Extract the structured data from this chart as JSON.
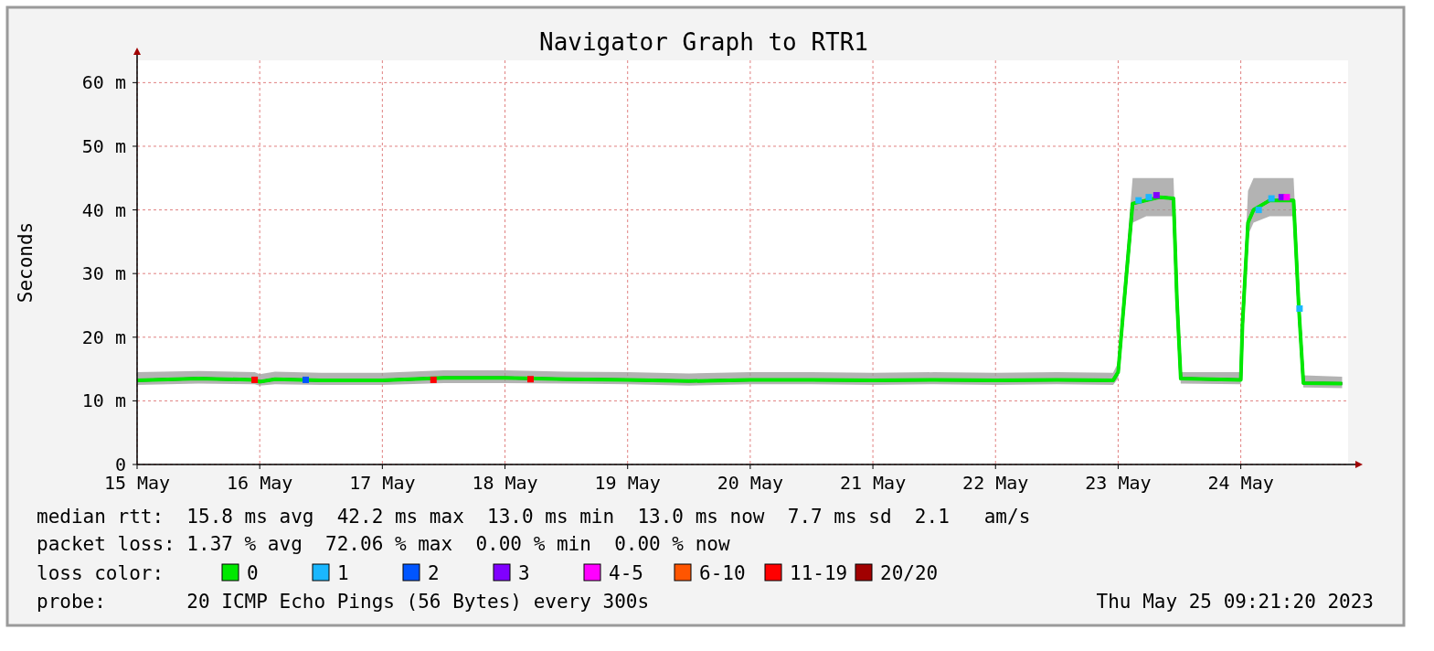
{
  "chart_data": {
    "type": "line",
    "title": "Navigator Graph to RTR1",
    "ylabel": "Seconds",
    "legend_title": "loss color:",
    "legend": "bottom",
    "grid": true,
    "marker": "square",
    "xlim": [
      "2023-05-15T00:00",
      "2023-05-24T21:00"
    ],
    "xticks": [
      {
        "value": "2023-05-15T00:00",
        "label": "15 May"
      },
      {
        "value": "2023-05-16T00:00",
        "label": "16 May"
      },
      {
        "value": "2023-05-17T00:00",
        "label": "17 May"
      },
      {
        "value": "2023-05-18T00:00",
        "label": "18 May"
      },
      {
        "value": "2023-05-19T00:00",
        "label": "19 May"
      },
      {
        "value": "2023-05-20T00:00",
        "label": "20 May"
      },
      {
        "value": "2023-05-21T00:00",
        "label": "21 May"
      },
      {
        "value": "2023-05-22T00:00",
        "label": "22 May"
      },
      {
        "value": "2023-05-23T00:00",
        "label": "23 May"
      },
      {
        "value": "2023-05-24T00:00",
        "label": "24 May"
      }
    ],
    "ylim": [
      0,
      63.5
    ],
    "yticks": [
      {
        "value": 0,
        "label": "0"
      },
      {
        "value": 10,
        "label": "10 m"
      },
      {
        "value": 20,
        "label": "20 m"
      },
      {
        "value": 30,
        "label": "30 m"
      },
      {
        "value": 40,
        "label": "40 m"
      },
      {
        "value": 50,
        "label": "50 m"
      },
      {
        "value": 60,
        "label": "60 m"
      }
    ],
    "series": [
      {
        "name": "0",
        "color": "#00e800",
        "marker": "none",
        "x": [
          "2023-05-15T00:00",
          "2023-05-15T12:00",
          "2023-05-15T23:00",
          "2023-05-16T00:00",
          "2023-05-16T03:00",
          "2023-05-16T12:00",
          "2023-05-17T00:00",
          "2023-05-17T12:00",
          "2023-05-18T00:00",
          "2023-05-18T12:00",
          "2023-05-19T00:00",
          "2023-05-19T12:00",
          "2023-05-20T00:00",
          "2023-05-20T12:00",
          "2023-05-21T00:00",
          "2023-05-21T12:00",
          "2023-05-22T00:00",
          "2023-05-22T12:00",
          "2023-05-22T23:00",
          "2023-05-23T00:00",
          "2023-05-23T01:00",
          "2023-05-23T02:50",
          "2023-05-23T05:30",
          "2023-05-23T08:10",
          "2023-05-23T10:50",
          "2023-05-23T11:30",
          "2023-05-23T12:15",
          "2023-05-24T00:00",
          "2023-05-24T00:20",
          "2023-05-24T01:25",
          "2023-05-24T02:30",
          "2023-05-24T05:40",
          "2023-05-24T10:20",
          "2023-05-24T11:20",
          "2023-05-24T12:15",
          "2023-05-24T19:50"
        ],
        "values": [
          13.2,
          13.5,
          13.3,
          13.0,
          13.4,
          13.2,
          13.2,
          13.6,
          13.6,
          13.4,
          13.3,
          13.1,
          13.3,
          13.3,
          13.2,
          13.3,
          13.2,
          13.3,
          13.2,
          14.5,
          24,
          41,
          41.5,
          42,
          41.8,
          26,
          13.5,
          13.3,
          22,
          38,
          40,
          41.5,
          41.5,
          25,
          12.8,
          12.7
        ],
        "lower": [
          12.5,
          12.7,
          12.6,
          12.4,
          12.6,
          12.5,
          12.5,
          12.8,
          12.8,
          12.7,
          12.6,
          12.4,
          12.6,
          12.6,
          12.5,
          12.6,
          12.5,
          12.6,
          12.5,
          13.5,
          22,
          38,
          39,
          39,
          39,
          24,
          12.7,
          12.6,
          20,
          36,
          38,
          39,
          39,
          23,
          12.1,
          12
        ],
        "upper": [
          14.5,
          14.7,
          14.5,
          14.2,
          14.6,
          14.4,
          14.4,
          14.8,
          14.8,
          14.6,
          14.5,
          14.3,
          14.5,
          14.5,
          14.4,
          14.5,
          14.4,
          14.5,
          14.4,
          16,
          27,
          45,
          45,
          45,
          45,
          29,
          14.5,
          14.5,
          25,
          43,
          45,
          45,
          45,
          28,
          14,
          13.8
        ]
      },
      {
        "name": "1",
        "type": "scatter",
        "color": "#1ab7ff",
        "x": [
          "2023-05-23T04:00",
          "2023-05-23T06:00",
          "2023-05-24T03:30",
          "2023-05-24T06:00",
          "2023-05-24T11:30"
        ],
        "values": [
          41.5,
          42,
          40,
          41.8,
          24.5
        ]
      },
      {
        "name": "2",
        "type": "scatter",
        "color": "#0055ff",
        "x": [
          "2023-05-16T09:00"
        ],
        "values": [
          13.3
        ]
      },
      {
        "name": "3",
        "type": "scatter",
        "color": "#8000ff",
        "x": [
          "2023-05-23T07:30",
          "2023-05-24T08:00"
        ],
        "values": [
          42.3,
          42
        ]
      },
      {
        "name": "4-5",
        "type": "scatter",
        "color": "#ff00ff",
        "x": [
          "2023-05-24T09:00"
        ],
        "values": [
          42
        ]
      },
      {
        "name": "6-10",
        "type": "scatter",
        "color": "#ff5500"
      },
      {
        "name": "11-19",
        "type": "scatter",
        "color": "#ff0000",
        "x": [
          "2023-05-15T23:00",
          "2023-05-17T10:00",
          "2023-05-18T05:00"
        ],
        "values": [
          13.3,
          13.3,
          13.4
        ]
      },
      {
        "name": "20/20",
        "type": "scatter",
        "color": "#a10000"
      }
    ],
    "annotations": [
      "median rtt:  15.8 ms avg  42.2 ms max  13.0 ms min  13.0 ms now  7.7 ms sd  2.1   am/s",
      "packet loss: 1.37 % avg  72.06 % max  0.00 % min  0.00 % now",
      "probe:       20 ICMP Echo Pings (56 Bytes) every 300s",
      "Thu May 25 09:21:20 2023"
    ]
  }
}
